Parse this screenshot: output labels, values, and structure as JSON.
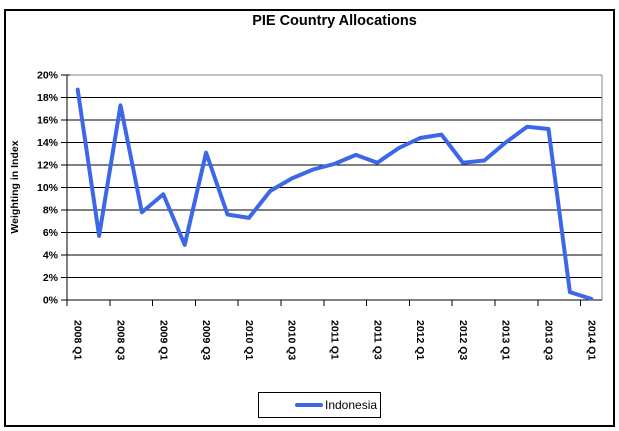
{
  "chart_data": {
    "type": "line",
    "title": "PIE Country Allocations",
    "ylabel": "Weighting in Index",
    "xlabel": "",
    "ylim": [
      0,
      20
    ],
    "ytick_step": 2,
    "ytick_labels": [
      "0%",
      "2%",
      "4%",
      "6%",
      "8%",
      "10%",
      "12%",
      "14%",
      "16%",
      "18%",
      "20%"
    ],
    "categories": [
      "2008 Q1",
      "2008 Q2",
      "2008 Q3",
      "2008 Q4",
      "2009 Q1",
      "2009 Q2",
      "2009 Q3",
      "2009 Q4",
      "2010 Q1",
      "2010 Q2",
      "2010 Q3",
      "2010 Q4",
      "2011 Q1",
      "2011 Q2",
      "2011 Q3",
      "2011 Q4",
      "2012 Q1",
      "2012 Q2",
      "2012 Q3",
      "2012 Q4",
      "2013 Q1",
      "2013 Q2",
      "2013 Q3",
      "2013 Q4",
      "2014 Q1"
    ],
    "xtick_label_every": 2,
    "grid": true,
    "legend_position": "bottom-center",
    "series": [
      {
        "name": "Indonesia",
        "color": "#3C68E8",
        "values": [
          18.7,
          5.7,
          17.3,
          7.8,
          9.4,
          4.9,
          13.1,
          7.6,
          7.3,
          9.7,
          10.8,
          11.6,
          12.1,
          12.9,
          12.2,
          13.5,
          14.4,
          14.7,
          12.2,
          12.4,
          14.0,
          15.4,
          15.2,
          0.7,
          0.1
        ]
      }
    ]
  },
  "colors": {
    "series": "#3C68E8",
    "grid": "#000000",
    "axis": "#000000",
    "plot_border": "#848484",
    "frame": "#000000",
    "background": "#FFFFFF"
  }
}
